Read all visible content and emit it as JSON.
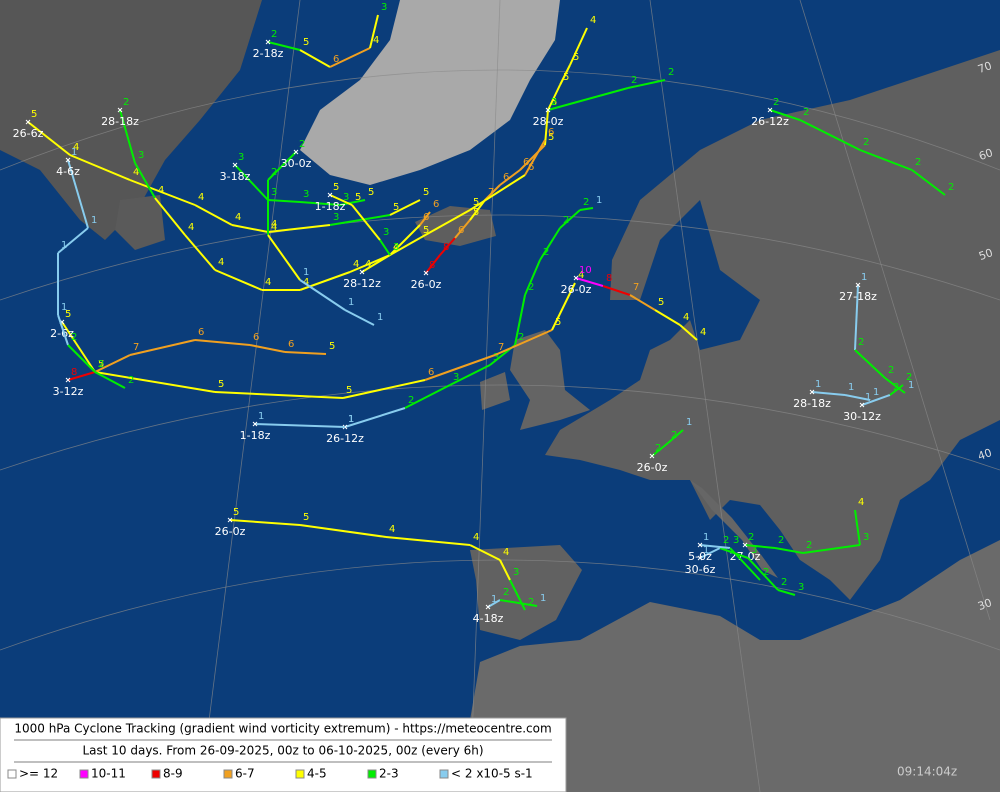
{
  "legend": {
    "title": "1000 hPa Cyclone Tracking (gradient wind vorticity extremum) - https://meteocentre.com",
    "subtitle": "Last 10 days. From 26-09-2025, 00z to 06-10-2025, 00z (every 6h)",
    "items": [
      {
        "label": ">= 12",
        "color": "#ffffff"
      },
      {
        "label": "10-11",
        "color": "#ff00ff"
      },
      {
        "label": "8-9",
        "color": "#ee0000"
      },
      {
        "label": "6-7",
        "color": "#f0a020"
      },
      {
        "label": "4-5",
        "color": "#ffff00"
      },
      {
        "label": "2-3",
        "color": "#00ee00"
      },
      {
        "label": "< 2 x10-5 s-1",
        "color": "#88ccee"
      }
    ]
  },
  "timestamp": "09:14:04z",
  "latitude_labels": [
    "70",
    "60",
    "50",
    "40",
    "30"
  ],
  "tracks": [
    {
      "label": "26-0z",
      "values": [
        8,
        8,
        6,
        5,
        7,
        6,
        6,
        5,
        5,
        5,
        5,
        4
      ]
    },
    {
      "label": "26-12z",
      "values": [
        1,
        2,
        3,
        3,
        2,
        2,
        2,
        2,
        2,
        1
      ]
    },
    {
      "label": "2-6z",
      "values": [
        5,
        5,
        5,
        5,
        6,
        7,
        5,
        4
      ]
    },
    {
      "label": "3-12z",
      "values": [
        8,
        7,
        7,
        6,
        6,
        6,
        5
      ]
    },
    {
      "label": "1-18z",
      "values": [
        1,
        1
      ]
    },
    {
      "label": "26-6z",
      "values": [
        5,
        4,
        4,
        4,
        4,
        4,
        3,
        5,
        5
      ]
    },
    {
      "label": "28-18z",
      "values": [
        2,
        3,
        4,
        4,
        4,
        4,
        4,
        4,
        4,
        5,
        5,
        6,
        6
      ]
    },
    {
      "label": "4-6z",
      "values": [
        1,
        1,
        1,
        1,
        2,
        2,
        2
      ]
    },
    {
      "label": "30-0z",
      "values": [
        2,
        2,
        4,
        1,
        1,
        1
      ]
    },
    {
      "label": "2-18z",
      "values": [
        2,
        5,
        6,
        4,
        3
      ]
    },
    {
      "label": "26-12z",
      "values": [
        2,
        2,
        2,
        2,
        2
      ]
    },
    {
      "label": "28-0z",
      "values": [
        2,
        2,
        2
      ]
    },
    {
      "label": "26-0z",
      "values": [
        10,
        8,
        7,
        5,
        4,
        4
      ]
    },
    {
      "label": "26-0z",
      "values": [
        5,
        5,
        4,
        4,
        4,
        3,
        2
      ]
    },
    {
      "label": "4-18z",
      "values": [
        1,
        2,
        1
      ]
    },
    {
      "label": "27-0z",
      "values": [
        2,
        2,
        2,
        3,
        4
      ]
    },
    {
      "label": "30-6z",
      "values": [
        1,
        2,
        3,
        2,
        3
      ]
    },
    {
      "label": "5-0z",
      "values": [
        1,
        3,
        2
      ]
    },
    {
      "label": "27-18z",
      "values": [
        1,
        2,
        2,
        1
      ]
    },
    {
      "label": "28-18z",
      "values": [
        1,
        1,
        1
      ]
    },
    {
      "label": "30-12z",
      "values": [
        1,
        2,
        2
      ]
    },
    {
      "label": "26-0z",
      "values": [
        2,
        2,
        1
      ]
    },
    {
      "label": "3-18z",
      "values": [
        3,
        3,
        3,
        3,
        5
      ]
    },
    {
      "label": "28-12z",
      "values": [
        4,
        4,
        6,
        6
      ]
    },
    {
      "label": "1-18z",
      "values": [
        5,
        5,
        3,
        3
      ]
    }
  ]
}
